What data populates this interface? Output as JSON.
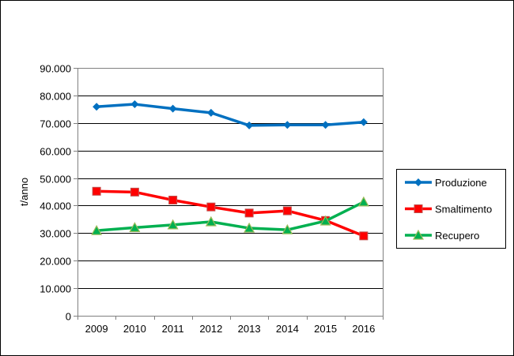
{
  "chart_data": {
    "type": "line",
    "title": "",
    "xlabel": "",
    "ylabel": "t/anno",
    "categories": [
      "2009",
      "2010",
      "2011",
      "2012",
      "2013",
      "2014",
      "2015",
      "2016"
    ],
    "ylim": [
      0,
      90000
    ],
    "yticks": [
      "0",
      "10.000",
      "20.000",
      "30.000",
      "40.000",
      "50.000",
      "60.000",
      "70.000",
      "80.000",
      "90.000"
    ],
    "grid": true,
    "legend_position": "right",
    "series": [
      {
        "name": "Produzione",
        "color": "#0070c0",
        "marker": "diamond",
        "values": [
          75900,
          76800,
          75200,
          73700,
          69100,
          69300,
          69300,
          70300
        ]
      },
      {
        "name": "Smaltimento",
        "color": "#ff0000",
        "marker": "square",
        "values": [
          45200,
          44900,
          42000,
          39500,
          37300,
          38100,
          34600,
          29000
        ]
      },
      {
        "name": "Recupero",
        "color": "#00b050",
        "marker": "triangle",
        "values": [
          30900,
          32000,
          33000,
          34100,
          31800,
          31200,
          34400,
          41300
        ]
      }
    ]
  }
}
